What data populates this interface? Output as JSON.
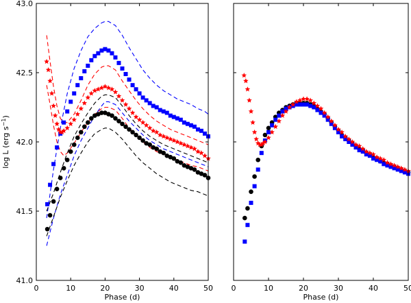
{
  "chart_data": [
    {
      "type": "scatter",
      "panel": "left",
      "xlabel": "Phase (d)",
      "ylabel": "log L (erg s",
      "ylabel_sup": "−1",
      "ylabel_close": ")",
      "xlim": [
        0,
        50
      ],
      "ylim": [
        41.0,
        43.0
      ],
      "xticks": [
        0,
        10,
        20,
        30,
        40,
        50
      ],
      "xtick_labels": [
        "0",
        "10",
        "20",
        "30",
        "40",
        "50"
      ],
      "yticks": [
        41.0,
        41.5,
        42.0,
        42.5,
        43.0
      ],
      "ytick_labels": [
        "41.0",
        "41.5",
        "42.0",
        "42.5",
        "43.0"
      ],
      "series": [
        {
          "name": "black circles",
          "marker": "circle",
          "color": "#000000",
          "x": [
            3.2,
            4,
            5,
            6,
            7,
            8,
            9,
            10,
            11,
            12,
            13,
            14,
            15,
            16,
            17,
            18,
            19,
            20,
            21,
            22,
            23,
            24,
            25,
            26,
            27,
            28,
            29,
            30,
            31,
            32,
            33,
            34,
            35,
            36,
            37,
            38,
            39,
            40,
            41,
            42,
            43,
            44,
            45,
            46,
            47,
            48,
            49,
            50
          ],
          "y": [
            41.37,
            41.47,
            41.57,
            41.66,
            41.74,
            41.81,
            41.87,
            41.93,
            41.98,
            42.03,
            42.07,
            42.11,
            42.14,
            42.17,
            42.19,
            42.2,
            42.21,
            42.21,
            42.2,
            42.19,
            42.17,
            42.15,
            42.13,
            42.11,
            42.09,
            42.07,
            42.05,
            42.03,
            42.01,
            41.99,
            41.98,
            41.96,
            41.95,
            41.93,
            41.92,
            41.9,
            41.89,
            41.88,
            41.86,
            41.85,
            41.83,
            41.82,
            41.81,
            41.8,
            41.78,
            41.77,
            41.76,
            41.74
          ]
        },
        {
          "name": "blue squares",
          "marker": "square",
          "color": "#0000ff",
          "x": [
            3.2,
            4,
            5,
            6,
            7,
            8,
            9,
            10,
            11,
            12,
            13,
            14,
            15,
            16,
            17,
            18,
            19,
            20,
            21,
            22,
            23,
            24,
            25,
            26,
            27,
            28,
            29,
            30,
            31,
            32,
            33,
            34,
            35,
            36,
            37,
            38,
            39,
            40,
            41,
            42,
            43,
            44,
            45,
            46,
            47,
            48,
            49,
            50
          ],
          "y": [
            41.55,
            41.69,
            41.84,
            41.96,
            42.06,
            42.14,
            42.22,
            42.29,
            42.35,
            42.41,
            42.46,
            42.51,
            42.55,
            42.59,
            42.62,
            42.64,
            42.66,
            42.67,
            42.66,
            42.64,
            42.61,
            42.57,
            42.53,
            42.49,
            42.45,
            42.41,
            42.38,
            42.35,
            42.32,
            42.3,
            42.28,
            42.26,
            42.25,
            42.23,
            42.22,
            42.21,
            42.19,
            42.18,
            42.17,
            42.16,
            42.14,
            42.13,
            42.12,
            42.11,
            42.09,
            42.08,
            42.06,
            42.04
          ]
        },
        {
          "name": "red stars",
          "marker": "star",
          "color": "#ff0000",
          "x": [
            3,
            3.5,
            4,
            4.5,
            5,
            5.5,
            6,
            6.5,
            7,
            7.5,
            8,
            9,
            10,
            11,
            12,
            13,
            14,
            15,
            16,
            17,
            18,
            19,
            20,
            21,
            22,
            23,
            24,
            25,
            26,
            27,
            28,
            29,
            30,
            31,
            32,
            33,
            34,
            35,
            36,
            37,
            38,
            39,
            40,
            41,
            42,
            43,
            44,
            45,
            46,
            47,
            48,
            49,
            50
          ],
          "y": [
            42.58,
            42.52,
            42.44,
            42.35,
            42.26,
            42.19,
            42.13,
            42.09,
            42.07,
            42.07,
            42.08,
            42.1,
            42.13,
            42.16,
            42.2,
            42.24,
            42.28,
            42.32,
            42.35,
            42.37,
            42.38,
            42.39,
            42.4,
            42.39,
            42.38,
            42.36,
            42.33,
            42.3,
            42.27,
            42.24,
            42.21,
            42.18,
            42.16,
            42.14,
            42.12,
            42.1,
            42.08,
            42.07,
            42.05,
            42.04,
            42.03,
            42.02,
            42.01,
            42,
            41.99,
            41.98,
            41.97,
            41.96,
            41.95,
            41.93,
            41.92,
            41.9,
            41.88
          ]
        }
      ],
      "dashed_curves": [
        {
          "name": "blue upper dashed",
          "color": "#0000ff",
          "x": [
            3,
            5,
            7,
            9,
            11,
            13,
            15,
            17,
            19,
            20,
            21,
            23,
            25,
            27,
            29,
            31,
            33,
            35,
            37,
            39,
            41,
            43,
            45,
            47,
            49,
            50
          ],
          "y": [
            41.45,
            41.8,
            42.1,
            42.35,
            42.53,
            42.66,
            42.76,
            42.82,
            42.86,
            42.87,
            42.87,
            42.84,
            42.77,
            42.68,
            42.6,
            42.52,
            42.46,
            42.41,
            42.37,
            42.34,
            42.31,
            42.29,
            42.27,
            42.24,
            42.22,
            42.2
          ]
        },
        {
          "name": "blue lower dashed",
          "color": "#0000ff",
          "x": [
            3,
            5,
            7,
            9,
            11,
            13,
            15,
            17,
            19,
            20,
            21,
            23,
            25,
            27,
            29,
            31,
            33,
            35,
            37,
            39,
            41,
            43,
            45,
            47,
            49,
            50
          ],
          "y": [
            41.25,
            41.45,
            41.62,
            41.76,
            41.9,
            42.01,
            42.1,
            42.19,
            42.26,
            42.29,
            42.29,
            42.27,
            42.21,
            42.15,
            42.1,
            42.05,
            42.01,
            41.98,
            41.95,
            41.93,
            41.91,
            41.89,
            41.87,
            41.85,
            41.83,
            41.82
          ]
        },
        {
          "name": "red upper dashed",
          "color": "#ff0000",
          "x": [
            3,
            4,
            5,
            6,
            7,
            8,
            9,
            11,
            13,
            15,
            17,
            19,
            20,
            21,
            23,
            25,
            27,
            29,
            31,
            33,
            35,
            37,
            39,
            41,
            43,
            45,
            47,
            49,
            50
          ],
          "y": [
            42.77,
            42.58,
            42.4,
            42.26,
            42.17,
            42.14,
            42.14,
            42.2,
            42.3,
            42.41,
            42.49,
            42.54,
            42.55,
            42.55,
            42.52,
            42.44,
            42.37,
            42.3,
            42.24,
            42.19,
            42.15,
            42.12,
            42.09,
            42.07,
            42.05,
            42.03,
            42.01,
            41.99,
            41.98
          ]
        },
        {
          "name": "red lower dashed",
          "color": "#ff0000",
          "x": [
            3,
            4,
            5,
            6,
            7,
            8,
            9,
            11,
            13,
            15,
            17,
            19,
            20,
            21,
            23,
            25,
            27,
            29,
            31,
            33,
            35,
            37,
            39,
            41,
            43,
            45,
            47,
            49,
            50
          ],
          "y": [
            42.41,
            42.27,
            42.12,
            42.0,
            41.93,
            41.9,
            41.92,
            41.99,
            42.07,
            42.14,
            42.2,
            42.24,
            42.25,
            42.25,
            42.23,
            42.17,
            42.1,
            42.05,
            42.0,
            41.96,
            41.93,
            41.91,
            41.89,
            41.87,
            41.85,
            41.83,
            41.82,
            41.8,
            41.79
          ]
        },
        {
          "name": "black upper dashed",
          "color": "#000000",
          "x": [
            3,
            5,
            7,
            9,
            11,
            13,
            15,
            17,
            19,
            20,
            21,
            23,
            25,
            27,
            29,
            31,
            33,
            35,
            37,
            39,
            41,
            43,
            45,
            47,
            49,
            50
          ],
          "y": [
            41.5,
            41.63,
            41.78,
            41.92,
            42.04,
            42.13,
            42.21,
            42.28,
            42.33,
            42.34,
            42.34,
            42.32,
            42.26,
            42.19,
            42.13,
            42.08,
            42.04,
            42.01,
            41.98,
            41.96,
            41.94,
            41.92,
            41.9,
            41.88,
            41.86,
            41.85
          ]
        },
        {
          "name": "black lower dashed",
          "color": "#000000",
          "x": [
            3,
            5,
            7,
            9,
            11,
            13,
            15,
            17,
            19,
            20,
            21,
            23,
            25,
            27,
            29,
            31,
            33,
            35,
            37,
            39,
            41,
            43,
            45,
            47,
            49,
            50
          ],
          "y": [
            41.32,
            41.46,
            41.6,
            41.72,
            41.83,
            41.92,
            42.0,
            42.06,
            42.09,
            42.1,
            42.1,
            42.07,
            42.02,
            41.96,
            41.9,
            41.85,
            41.81,
            41.77,
            41.74,
            41.71,
            41.69,
            41.67,
            41.65,
            41.64,
            41.62,
            41.61
          ]
        }
      ]
    },
    {
      "type": "scatter",
      "panel": "right",
      "xlabel": "Phase (d)",
      "xlim": [
        0,
        50
      ],
      "ylim": [
        41.0,
        43.0
      ],
      "xticks": [
        0,
        10,
        20,
        30,
        40,
        50
      ],
      "xtick_labels": [
        "0",
        "10",
        "20",
        "30",
        "40",
        "50"
      ],
      "series": [
        {
          "name": "black circles",
          "marker": "circle",
          "color": "#000000",
          "x": [
            3.2,
            4,
            5,
            6,
            7,
            8,
            9,
            10,
            11,
            12,
            13,
            14,
            15,
            16,
            17,
            18,
            19,
            20,
            21,
            22,
            23,
            24,
            25,
            26,
            27,
            28,
            29,
            30,
            31,
            32,
            33,
            34,
            35,
            36,
            37,
            38,
            39,
            40,
            41,
            42,
            43,
            44,
            45,
            46,
            47,
            48,
            49,
            50
          ],
          "y": [
            41.45,
            41.52,
            41.64,
            41.75,
            41.87,
            41.97,
            42.05,
            42.1,
            42.14,
            42.18,
            42.21,
            42.23,
            42.25,
            42.26,
            42.27,
            42.28,
            42.28,
            42.28,
            42.28,
            42.27,
            42.26,
            42.24,
            42.22,
            42.2,
            42.17,
            42.14,
            42.11,
            42.08,
            42.05,
            42.03,
            42.01,
            41.99,
            41.97,
            41.95,
            41.94,
            41.92,
            41.91,
            41.89,
            41.88,
            41.86,
            41.85,
            41.84,
            41.83,
            41.82,
            41.81,
            41.8,
            41.79,
            41.78
          ]
        },
        {
          "name": "blue squares",
          "marker": "square",
          "color": "#0000ff",
          "x": [
            3.2,
            4,
            5,
            6,
            7,
            8,
            9,
            10,
            11,
            12,
            13,
            14,
            15,
            16,
            17,
            18,
            19,
            20,
            21,
            22,
            23,
            24,
            25,
            26,
            27,
            28,
            29,
            30,
            31,
            32,
            33,
            34,
            35,
            36,
            37,
            38,
            39,
            40,
            41,
            42,
            43,
            44,
            45,
            46,
            47,
            48,
            49,
            50
          ],
          "y": [
            41.28,
            41.4,
            41.56,
            41.68,
            41.8,
            41.92,
            42.01,
            42.07,
            42.12,
            42.16,
            42.19,
            42.22,
            42.24,
            42.25,
            42.26,
            42.27,
            42.27,
            42.27,
            42.27,
            42.26,
            42.25,
            42.23,
            42.21,
            42.19,
            42.16,
            42.13,
            42.1,
            42.07,
            42.04,
            42.02,
            42.0,
            41.98,
            41.96,
            41.94,
            41.93,
            41.91,
            41.9,
            41.88,
            41.87,
            41.86,
            41.84,
            41.83,
            41.82,
            41.81,
            41.8,
            41.79,
            41.78,
            41.77
          ]
        },
        {
          "name": "red stars",
          "marker": "star",
          "color": "#ff0000",
          "x": [
            3,
            3.5,
            4,
            4.5,
            5,
            5.5,
            6,
            6.5,
            7,
            7.5,
            8,
            8.5,
            9,
            10,
            11,
            12,
            13,
            14,
            15,
            16,
            17,
            18,
            19,
            20,
            21,
            22,
            23,
            24,
            25,
            26,
            27,
            28,
            29,
            30,
            31,
            32,
            33,
            34,
            35,
            36,
            37,
            38,
            39,
            40,
            41,
            42,
            43,
            44,
            45,
            46,
            47,
            48,
            49,
            50
          ],
          "y": [
            42.48,
            42.44,
            42.38,
            42.3,
            42.22,
            42.14,
            42.07,
            42.02,
            41.99,
            41.98,
            41.98,
            41.99,
            42.0,
            42.03,
            42.07,
            42.11,
            42.15,
            42.19,
            42.22,
            42.25,
            42.27,
            42.29,
            42.3,
            42.31,
            42.31,
            42.3,
            42.28,
            42.26,
            42.24,
            42.21,
            42.18,
            42.15,
            42.12,
            42.09,
            42.07,
            42.04,
            42.02,
            42.0,
            41.98,
            41.97,
            41.95,
            41.93,
            41.92,
            41.91,
            41.89,
            41.88,
            41.87,
            41.85,
            41.84,
            41.83,
            41.82,
            41.81,
            41.8,
            41.79
          ]
        }
      ]
    }
  ]
}
